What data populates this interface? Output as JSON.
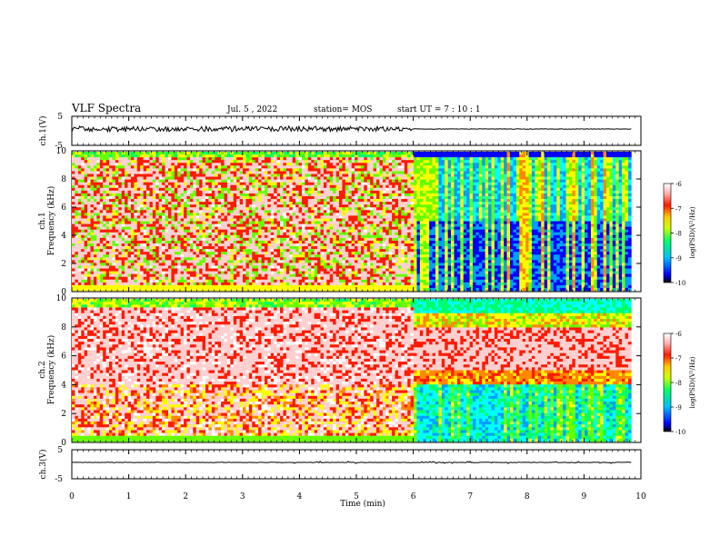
{
  "header": {
    "title": "VLF Spectra",
    "date": "Jul. 5 , 2022",
    "station": "station= MOS",
    "start_ut": "start UT =  7 : 10 : 1"
  },
  "colors": {
    "spectrum": [
      "#000080",
      "#0000ff",
      "#00a0ff",
      "#00ffff",
      "#00ff66",
      "#66ff00",
      "#ffff00",
      "#ff8800",
      "#ff1a00",
      "#ffd0d0",
      "#ffffff"
    ]
  },
  "chart_data": [
    {
      "type": "line",
      "name": "ch1-waveform",
      "ylabel": "ch.1(V)",
      "ylim": [
        -5,
        5
      ],
      "yticks": [
        "5",
        "-5"
      ],
      "x_end_min": 9.83,
      "note_levels": {
        "before_6min": "noisy",
        "after_6min": "flat"
      }
    },
    {
      "type": "heatmap",
      "name": "ch1-spectrogram",
      "ylabel_line1": "ch.1",
      "ylabel_line2": "Frequency (kHz)",
      "ylim": [
        0,
        10
      ],
      "yticks": [
        "0",
        "2",
        "4",
        "6",
        "8",
        "10"
      ],
      "colorbar": {
        "label": "log(PSD)(V²/Hz)",
        "ticks": [
          "-6",
          "-7",
          "-8",
          "-9",
          "-10"
        ],
        "range": [
          -10,
          -6
        ]
      },
      "transition_min": 6.0,
      "intensity_before": "high (red/white) with green bands",
      "intensity_after": "low (blue/black) with green vertical streaks"
    },
    {
      "type": "heatmap",
      "name": "ch2-spectrogram",
      "ylabel_line1": "ch.2",
      "ylabel_line2": "Frequency (kHz)",
      "ylim": [
        0,
        10
      ],
      "yticks": [
        "0",
        "2",
        "4",
        "6",
        "8",
        "10"
      ],
      "colorbar": {
        "label": "log(PSD)(V²/Hz)",
        "ticks": [
          "-6",
          "-7",
          "-8",
          "-9",
          "-10"
        ],
        "range": [
          -10,
          -6
        ]
      },
      "transition_min": 6.0,
      "intensity_before": "high (red/white) 2–10 kHz",
      "intensity_after": "red band 5–8 kHz, green/blue below 4 kHz"
    },
    {
      "type": "line",
      "name": "ch3-waveform",
      "ylabel": "ch.3(V)",
      "ylim": [
        -5,
        5
      ],
      "yticks": [
        "5",
        "-5"
      ],
      "x_end_min": 9.83
    }
  ],
  "xaxis": {
    "label": "Time (min)",
    "xlim": [
      0,
      10
    ],
    "ticks": [
      "0",
      "1",
      "2",
      "3",
      "4",
      "5",
      "6",
      "7",
      "8",
      "9",
      "10"
    ]
  }
}
